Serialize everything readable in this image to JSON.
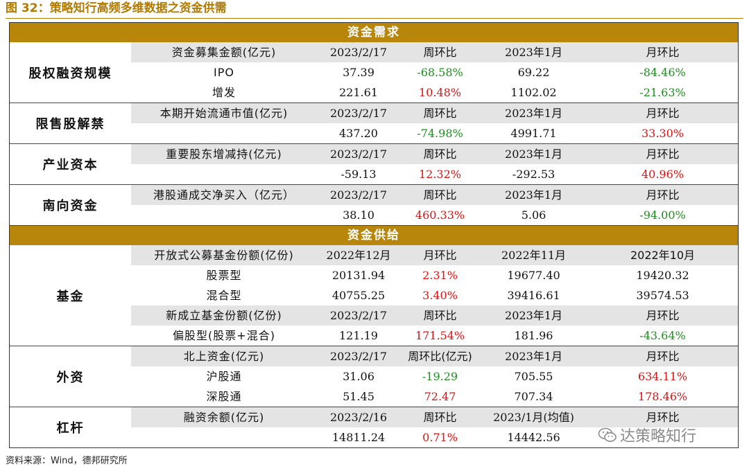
{
  "figure_title": "图 32：策略知行高频多维数据之资金供需",
  "demand": {
    "banner": "资金需求",
    "sections": [
      {
        "name": "股权融资规模",
        "rows": [
          {
            "type": "hdr",
            "cells": [
              "资金募集金额(亿元)",
              "2023/2/17",
              "周环比",
              "2023年1月",
              "月环比"
            ]
          },
          {
            "type": "data",
            "cells": [
              "IPO",
              "37.39",
              "-68.58%",
              "69.22",
              "-84.46%"
            ],
            "colors": [
              "",
              "",
              "neg",
              "",
              "neg"
            ]
          },
          {
            "type": "data",
            "cells": [
              "增发",
              "221.61",
              "10.48%",
              "1102.02",
              "-21.63%"
            ],
            "colors": [
              "",
              "",
              "pos",
              "",
              "neg"
            ]
          }
        ]
      },
      {
        "name": "限售股解禁",
        "rows": [
          {
            "type": "hdr",
            "cells": [
              "本期开始流通市值(亿元)",
              "2023/2/17",
              "周环比",
              "2023年1月",
              "月环比"
            ]
          },
          {
            "type": "data",
            "cells": [
              "",
              "437.20",
              "-74.98%",
              "4991.71",
              "33.30%"
            ],
            "colors": [
              "",
              "",
              "neg",
              "",
              "pos"
            ]
          }
        ]
      },
      {
        "name": "产业资本",
        "rows": [
          {
            "type": "hdr",
            "cells": [
              "重要股东增减持(亿元)",
              "2023/2/17",
              "周环比",
              "2023年1月",
              "月环比"
            ]
          },
          {
            "type": "data",
            "cells": [
              "",
              "-59.13",
              "12.32%",
              "-292.53",
              "40.96%"
            ],
            "colors": [
              "",
              "",
              "pos",
              "",
              "pos"
            ]
          }
        ]
      },
      {
        "name": "南向资金",
        "rows": [
          {
            "type": "hdr",
            "cells": [
              "港股通成交净买入（亿元）",
              "2023/2/17",
              "周环比",
              "2023年1月",
              "月环比"
            ]
          },
          {
            "type": "data",
            "cells": [
              "",
              "38.10",
              "460.33%",
              "5.06",
              "-94.00%"
            ],
            "colors": [
              "",
              "",
              "pos",
              "",
              "neg"
            ]
          }
        ]
      }
    ]
  },
  "supply": {
    "banner": "资金供给",
    "sections": [
      {
        "name": "基金",
        "rows": [
          {
            "type": "hdr",
            "cells": [
              "开放式公募基金份额(亿份)",
              "2022年12月",
              "月环比",
              "2022年11月",
              "2022年10月"
            ]
          },
          {
            "type": "data",
            "cells": [
              "股票型",
              "20131.94",
              "2.31%",
              "19677.40",
              "19420.32"
            ],
            "colors": [
              "",
              "",
              "pos",
              "",
              ""
            ]
          },
          {
            "type": "data",
            "cells": [
              "混合型",
              "40755.25",
              "3.40%",
              "39416.61",
              "39574.53"
            ],
            "colors": [
              "",
              "",
              "pos",
              "",
              ""
            ]
          },
          {
            "type": "hdr",
            "cells": [
              "新成立基金份额(亿份)",
              "2023/2/17",
              "周环比",
              "2023年1月",
              "月环比"
            ]
          },
          {
            "type": "data",
            "cells": [
              "偏股型(股票+混合)",
              "121.19",
              "171.54%",
              "181.96",
              "-43.64%"
            ],
            "colors": [
              "",
              "",
              "pos",
              "",
              "neg"
            ]
          }
        ]
      },
      {
        "name": "外资",
        "rows": [
          {
            "type": "hdr",
            "cells": [
              "北上资金(亿元)",
              "2023/2/17",
              "周环比(亿元)",
              "2023年1月",
              "月环比"
            ]
          },
          {
            "type": "data",
            "cells": [
              "沪股通",
              "31.06",
              "-19.29",
              "705.55",
              "634.11%"
            ],
            "colors": [
              "",
              "",
              "neg",
              "",
              "pos"
            ]
          },
          {
            "type": "data",
            "cells": [
              "深股通",
              "51.45",
              "72.47",
              "707.34",
              "178.46%"
            ],
            "colors": [
              "",
              "",
              "pos",
              "",
              "pos"
            ]
          }
        ]
      },
      {
        "name": "杠杆",
        "rows": [
          {
            "type": "hdr",
            "cells": [
              "融资余额(亿元)",
              "2023/2/16",
              "周环比",
              "2023/1月(均值)",
              "月环比"
            ]
          },
          {
            "type": "data",
            "cells": [
              "",
              "14811.24",
              "0.71%",
              "14442.56",
              ""
            ],
            "colors": [
              "",
              "",
              "pos",
              "",
              ""
            ]
          }
        ]
      }
    ]
  },
  "source_note": "资料来源：Wind，德邦研究所",
  "watermark": "达策略知行",
  "colors": {
    "gold": "#b8860b",
    "negative": "#1a8f1a",
    "positive": "#e01010",
    "header_row": "#e4e4e4"
  }
}
